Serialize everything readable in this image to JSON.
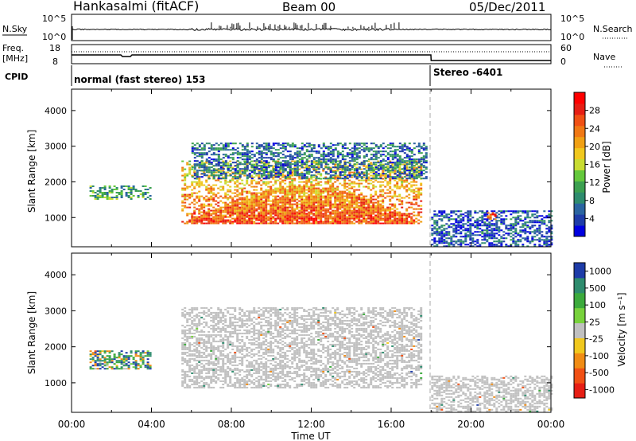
{
  "header": {
    "station": "Hankasalmi (fitACF)",
    "beam": "Beam 00",
    "date": "05/Dec/2011"
  },
  "top_panels": {
    "nsky_label": "N.Sky",
    "nsearch_label": "N.Search",
    "freq_label_1": "Freq.",
    "freq_label_2": "[MHz]",
    "nave_label": "Nave",
    "cpid_label": "CPID",
    "nsky_ticks": [
      "10^5",
      "10^0"
    ],
    "nsearch_ticks": [
      "10^5",
      "10^0"
    ],
    "freq_ticks": [
      "18",
      "8"
    ],
    "nave_ticks": [
      "60",
      "0"
    ],
    "cpid_segments": [
      {
        "label": "normal (fast stereo) 153",
        "start_hour": 0,
        "end_hour": 18
      },
      {
        "label": "Stereo -6401",
        "start_hour": 18,
        "end_hour": 24
      }
    ]
  },
  "chart_data": [
    {
      "type": "heatmap",
      "panel": "power",
      "ylabel": "Slant Range [km]",
      "xlabel": "Time UT",
      "x_ticks": [
        "00:00",
        "04:00",
        "08:00",
        "12:00",
        "16:00",
        "20:00",
        "00:00"
      ],
      "y_ticks": [
        "1000",
        "2000",
        "3000",
        "4000"
      ],
      "xlim_hours": [
        0,
        24
      ],
      "ylim_km": [
        180,
        4600
      ],
      "colorbar": {
        "label": "Power [dB]",
        "ticks": [
          "4",
          "8",
          "12",
          "16",
          "20",
          "24",
          "28"
        ],
        "range": [
          0,
          32
        ],
        "colors": [
          "#0000e0",
          "#1e3ca8",
          "#2a64a0",
          "#2e8c6e",
          "#3ca050",
          "#64c83c",
          "#c8dc32",
          "#f0c81e",
          "#f0a014",
          "#f07814",
          "#f05014",
          "#e61e14",
          "#ff0000"
        ]
      },
      "scatter_regions": [
        {
          "t0": 0.9,
          "t1": 3.9,
          "r_low": 1500,
          "r_high": 1900,
          "value": 10
        },
        {
          "t0": 5.5,
          "t1": 17.5,
          "r_low": 850,
          "r_high": 2600,
          "value": 22
        },
        {
          "t0": 6.0,
          "t1": 17.8,
          "r_low": 2100,
          "r_high": 3100,
          "value": 6
        },
        {
          "t0": 18.0,
          "t1": 24.0,
          "r_low": 200,
          "r_high": 1200,
          "value": 4
        },
        {
          "t0": 20.8,
          "t1": 21.2,
          "r_low": 950,
          "r_high": 1150,
          "value": 26
        }
      ]
    },
    {
      "type": "heatmap",
      "panel": "velocity",
      "ylabel": "Slant Range [km]",
      "xlabel": "Time UT",
      "x_ticks": [
        "00:00",
        "04:00",
        "08:00",
        "12:00",
        "16:00",
        "20:00",
        "00:00"
      ],
      "y_ticks": [
        "1000",
        "2000",
        "3000",
        "4000"
      ],
      "xlim_hours": [
        0,
        24
      ],
      "ylim_km": [
        180,
        4600
      ],
      "colorbar": {
        "label": "Velocity [m s⁻¹]",
        "ticks": [
          "1000",
          "500",
          "100",
          "25",
          "-25",
          "-100",
          "-500",
          "-1000"
        ],
        "colors": [
          "#1e3ca8",
          "#2e8c6e",
          "#3caa3c",
          "#78d23c",
          "#c0c0c0",
          "#f0c81e",
          "#f08c14",
          "#f05014",
          "#e61e14"
        ]
      },
      "scatter_regions": [
        {
          "t0": 0.9,
          "t1": 3.9,
          "r_low": 1400,
          "r_high": 1900,
          "value": 300
        },
        {
          "t0": 5.5,
          "t1": 17.5,
          "r_low": 850,
          "r_high": 3100,
          "value": 0
        },
        {
          "t0": 18.0,
          "t1": 24.0,
          "r_low": 200,
          "r_high": 1200,
          "value": 0
        }
      ]
    }
  ]
}
